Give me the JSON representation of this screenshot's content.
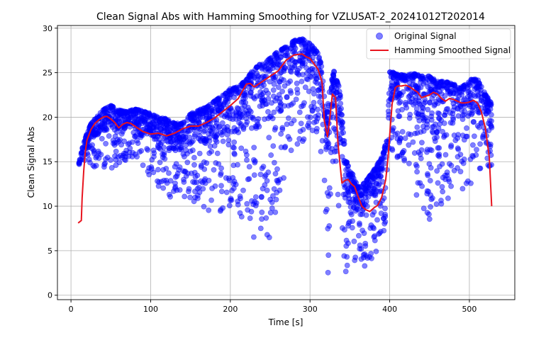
{
  "chart_data": {
    "type": "scatter",
    "title": "Clean Signal Abs with Hamming Smoothing for VZLUSAT-2_20241012T202014",
    "xlabel": "Time [s]",
    "ylabel": "Clean Signal Abs",
    "xlim": [
      -17,
      557
    ],
    "ylim": [
      -0.5,
      30.3
    ],
    "xticks": [
      0,
      100,
      200,
      300,
      400,
      500
    ],
    "yticks": [
      0,
      5,
      10,
      15,
      20,
      25,
      30
    ],
    "grid": true,
    "legend_position": "top-right",
    "series": [
      {
        "name": "Original Signal",
        "kind": "scatter",
        "color": "#0000ff",
        "alpha": 0.5,
        "upper_envelope": [
          [
            10,
            14.8
          ],
          [
            15,
            16.8
          ],
          [
            20,
            18.2
          ],
          [
            25,
            19.2
          ],
          [
            30,
            19.8
          ],
          [
            40,
            20.8
          ],
          [
            50,
            21.3
          ],
          [
            60,
            20.8
          ],
          [
            70,
            20.6
          ],
          [
            80,
            20.9
          ],
          [
            90,
            20.7
          ],
          [
            100,
            20.4
          ],
          [
            110,
            20.0
          ],
          [
            120,
            19.8
          ],
          [
            130,
            19.3
          ],
          [
            140,
            19.3
          ],
          [
            150,
            20.4
          ],
          [
            160,
            20.8
          ],
          [
            170,
            21.1
          ],
          [
            180,
            21.8
          ],
          [
            190,
            22.4
          ],
          [
            200,
            23.2
          ],
          [
            210,
            23.4
          ],
          [
            220,
            24.2
          ],
          [
            230,
            25.5
          ],
          [
            240,
            26.1
          ],
          [
            250,
            26.6
          ],
          [
            260,
            27.4
          ],
          [
            270,
            27.9
          ],
          [
            280,
            28.6
          ],
          [
            290,
            28.8
          ],
          [
            300,
            28.3
          ],
          [
            310,
            27.2
          ],
          [
            315,
            25.6
          ],
          [
            320,
            20.0
          ],
          [
            325,
            23.2
          ],
          [
            330,
            25.2
          ],
          [
            333,
            24.2
          ],
          [
            337,
            23.4
          ],
          [
            340,
            20.2
          ],
          [
            345,
            15.2
          ],
          [
            350,
            14.2
          ],
          [
            355,
            13.5
          ],
          [
            360,
            12.1
          ],
          [
            370,
            12.8
          ],
          [
            380,
            14.0
          ],
          [
            390,
            15.5
          ],
          [
            397,
            17.6
          ],
          [
            400,
            25.2
          ],
          [
            410,
            24.8
          ],
          [
            420,
            24.7
          ],
          [
            430,
            24.9
          ],
          [
            440,
            24.6
          ],
          [
            450,
            24.6
          ],
          [
            460,
            24.0
          ],
          [
            470,
            24.0
          ],
          [
            480,
            23.7
          ],
          [
            490,
            23.4
          ],
          [
            500,
            24.2
          ],
          [
            510,
            24.3
          ],
          [
            520,
            22.6
          ],
          [
            528,
            21.5
          ]
        ],
        "lower_envelope": [
          [
            10,
            14.6
          ],
          [
            20,
            15.3
          ],
          [
            30,
            14.0
          ],
          [
            40,
            13.6
          ],
          [
            50,
            14.2
          ],
          [
            60,
            14.6
          ],
          [
            70,
            15.2
          ],
          [
            80,
            15.6
          ],
          [
            90,
            14.6
          ],
          [
            100,
            13.2
          ],
          [
            110,
            12.0
          ],
          [
            120,
            11.2
          ],
          [
            130,
            10.8
          ],
          [
            140,
            10.8
          ],
          [
            150,
            10.6
          ],
          [
            160,
            9.8
          ],
          [
            170,
            9.6
          ],
          [
            180,
            9.2
          ],
          [
            190,
            8.4
          ],
          [
            200,
            9.0
          ],
          [
            210,
            8.6
          ],
          [
            220,
            8.4
          ],
          [
            230,
            6.2
          ],
          [
            240,
            6.8
          ],
          [
            250,
            6.0
          ],
          [
            260,
            8.2
          ],
          [
            270,
            15.2
          ],
          [
            280,
            16.5
          ],
          [
            290,
            17.2
          ],
          [
            300,
            18.6
          ],
          [
            310,
            17.6
          ],
          [
            318,
            12.4
          ],
          [
            322,
            1.0
          ],
          [
            330,
            16.8
          ],
          [
            337,
            8.2
          ],
          [
            342,
            1.6
          ],
          [
            350,
            3.2
          ],
          [
            360,
            2.8
          ],
          [
            370,
            3.0
          ],
          [
            380,
            4.2
          ],
          [
            390,
            4.8
          ],
          [
            395,
            7.8
          ],
          [
            400,
            16.2
          ],
          [
            410,
            15.4
          ],
          [
            420,
            14.2
          ],
          [
            430,
            12.4
          ],
          [
            440,
            8.4
          ],
          [
            450,
            8.2
          ],
          [
            460,
            9.0
          ],
          [
            470,
            10.6
          ],
          [
            480,
            10.2
          ],
          [
            490,
            11.2
          ],
          [
            500,
            12.2
          ],
          [
            510,
            13.6
          ],
          [
            520,
            15.2
          ],
          [
            528,
            12.6
          ]
        ]
      },
      {
        "name": "Hamming Smoothed Signal",
        "kind": "line",
        "color": "#e8141e",
        "x": [
          9,
          13,
          14,
          16,
          18,
          20,
          25,
          30,
          35,
          40,
          45,
          50,
          55,
          60,
          65,
          70,
          75,
          80,
          90,
          100,
          110,
          120,
          130,
          140,
          150,
          160,
          170,
          180,
          190,
          200,
          210,
          220,
          225,
          230,
          240,
          250,
          260,
          270,
          280,
          290,
          295,
          300,
          305,
          310,
          315,
          318,
          322,
          325,
          328,
          332,
          335,
          338,
          340,
          344,
          348,
          352,
          356,
          360,
          365,
          370,
          375,
          380,
          385,
          390,
          395,
          398,
          400,
          403,
          407,
          410,
          415,
          420,
          425,
          430,
          435,
          440,
          450,
          455,
          460,
          465,
          470,
          475,
          480,
          485,
          490,
          495,
          500,
          505,
          510,
          515,
          520,
          525,
          528
        ],
        "y": [
          8.1,
          8.4,
          10.9,
          14.0,
          16.1,
          17.4,
          18.6,
          19.3,
          19.7,
          20.0,
          20.1,
          19.8,
          19.4,
          18.8,
          19.2,
          19.4,
          19.3,
          19.0,
          18.4,
          18.1,
          18.2,
          17.9,
          18.2,
          18.7,
          19.0,
          19.0,
          19.4,
          19.9,
          20.6,
          21.3,
          22.1,
          23.7,
          23.8,
          23.4,
          24.0,
          24.6,
          25.2,
          26.4,
          27.0,
          27.1,
          26.8,
          26.6,
          26.0,
          25.4,
          24.0,
          19.6,
          17.8,
          20.0,
          22.6,
          22.2,
          17.2,
          14.4,
          12.6,
          12.9,
          13.0,
          12.5,
          12.2,
          11.2,
          10.0,
          9.6,
          9.4,
          9.8,
          10.1,
          11.0,
          13.0,
          15.5,
          18.0,
          21.5,
          23.3,
          23.5,
          23.5,
          23.6,
          23.4,
          23.1,
          22.8,
          22.2,
          22.5,
          22.8,
          22.6,
          22.1,
          21.8,
          22.1,
          22.0,
          21.8,
          21.6,
          21.6,
          21.7,
          21.9,
          21.6,
          20.6,
          18.8,
          15.5,
          10.0
        ]
      }
    ]
  }
}
